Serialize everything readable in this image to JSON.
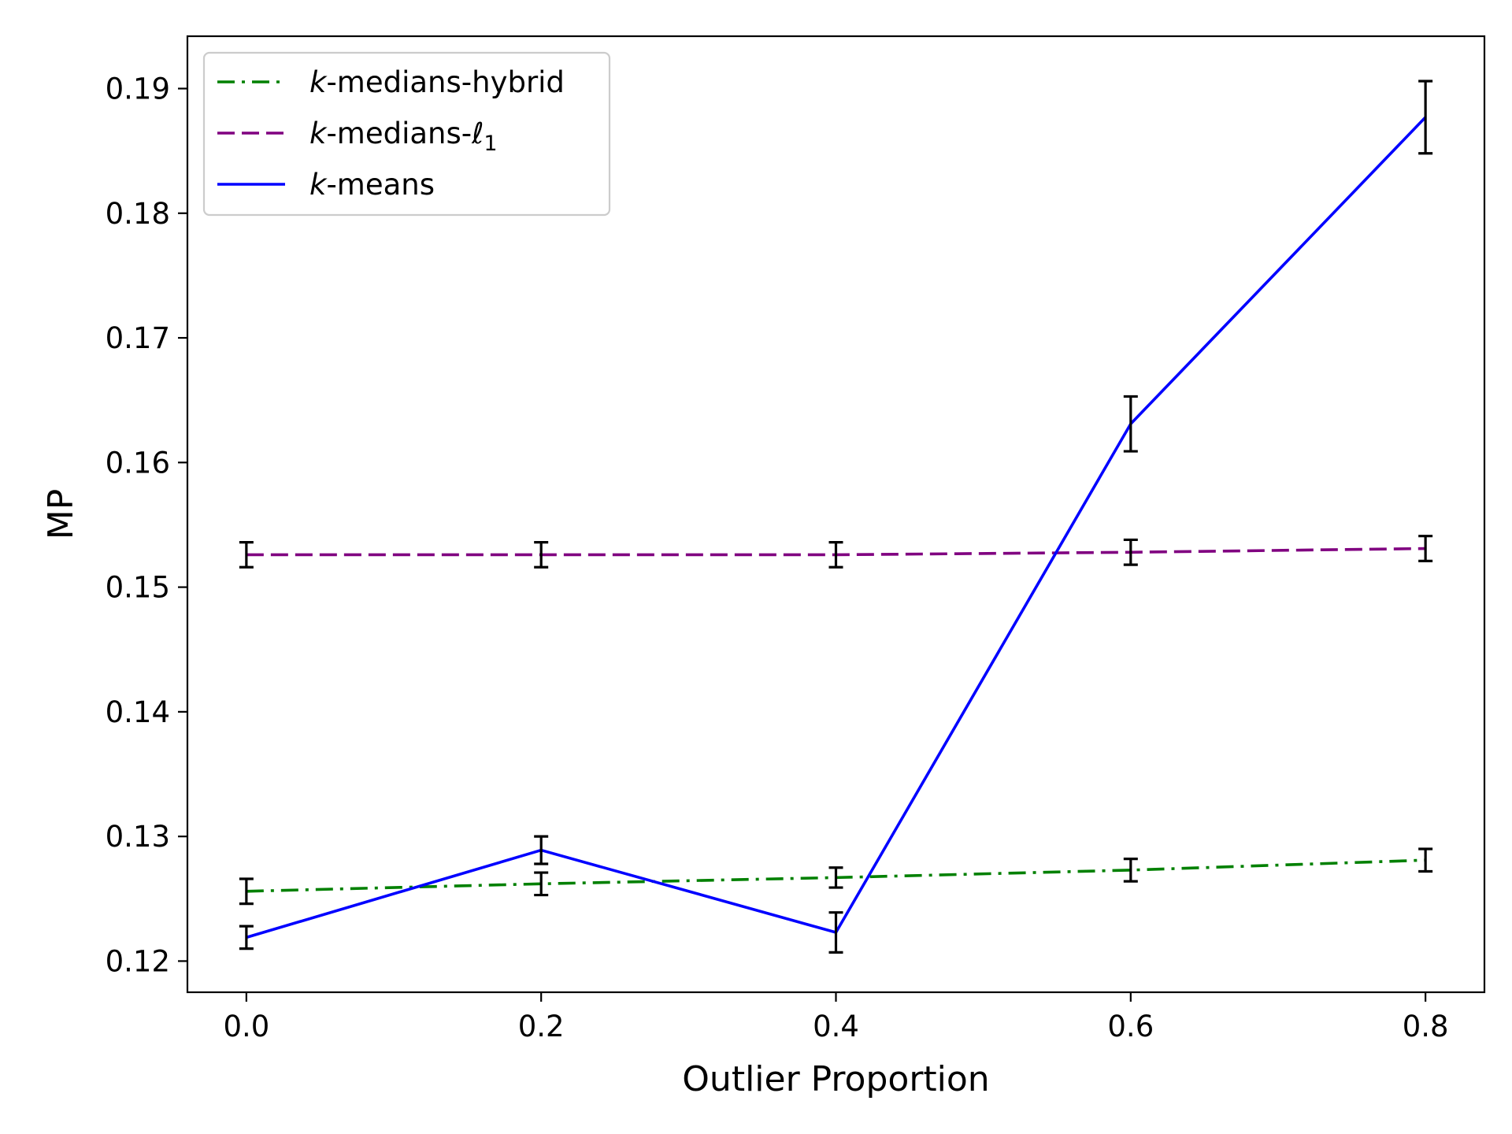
{
  "chart_data": {
    "type": "line",
    "xlabel": "Outlier Proportion",
    "ylabel": "MP",
    "xlim": [
      -0.04,
      0.84
    ],
    "ylim": [
      0.1175,
      0.1942
    ],
    "x_ticks": [
      0.0,
      0.2,
      0.4,
      0.6,
      0.8
    ],
    "x_tick_labels": [
      "0.0",
      "0.2",
      "0.4",
      "0.6",
      "0.8"
    ],
    "y_ticks": [
      0.12,
      0.13,
      0.14,
      0.15,
      0.16,
      0.17,
      0.18,
      0.19
    ],
    "y_tick_labels": [
      "0.12",
      "0.13",
      "0.14",
      "0.15",
      "0.16",
      "0.17",
      "0.18",
      "0.19"
    ],
    "grid": false,
    "legend_position": "top-left",
    "x": [
      0.0,
      0.2,
      0.4,
      0.6,
      0.8
    ],
    "series": [
      {
        "name": "k-medians-hybrid",
        "name_prefix": "k",
        "name_suffix": "-medians-hybrid",
        "color": "#008000",
        "linestyle": "dashdot",
        "values": [
          0.1256,
          0.1262,
          0.1267,
          0.1273,
          0.1281
        ],
        "errors": [
          0.001,
          0.0009,
          0.0008,
          0.0009,
          0.0009
        ]
      },
      {
        "name": "k-medians-ℓ1",
        "name_prefix": "k",
        "name_suffix": "-medians-ℓ",
        "name_subscript": "1",
        "color": "#800080",
        "linestyle": "dashed",
        "values": [
          0.1526,
          0.1526,
          0.1526,
          0.1528,
          0.1531
        ],
        "errors": [
          0.001,
          0.001,
          0.001,
          0.001,
          0.001
        ]
      },
      {
        "name": "k-means",
        "name_prefix": "k",
        "name_suffix": "-means",
        "color": "#0000ff",
        "linestyle": "solid",
        "values": [
          0.1219,
          0.1289,
          0.1223,
          0.1631,
          0.1877
        ],
        "errors": [
          0.0009,
          0.0011,
          0.0016,
          0.0022,
          0.0029
        ]
      }
    ]
  }
}
